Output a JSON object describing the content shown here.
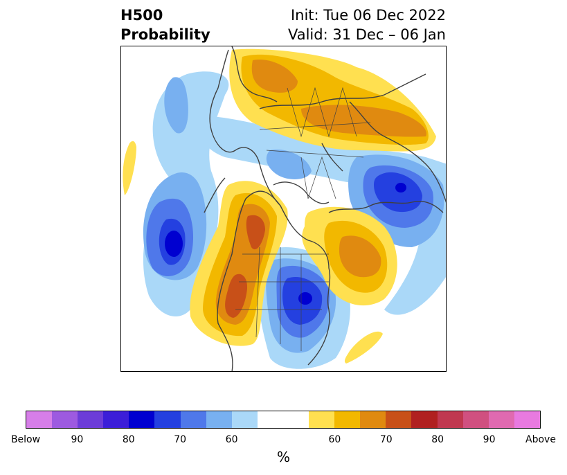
{
  "title": {
    "left_line1": "H500",
    "left_line2": "Probability",
    "right_line1": "Init: Tue 06 Dec 2022",
    "right_line2": "Valid: 31 Dec – 06 Jan"
  },
  "colorbar": {
    "label": "%",
    "colors": [
      "#d67ee8",
      "#9d5ae0",
      "#6c3cd8",
      "#3c1ed8",
      "#0000d0",
      "#2440e0",
      "#4f78ea",
      "#78b0f0",
      "#aad8f8",
      "#ffffff",
      "#ffffff",
      "#ffe050",
      "#f2b800",
      "#e08a10",
      "#c85018",
      "#b02020",
      "#c03850",
      "#d05080",
      "#e06ab0",
      "#e87ae0"
    ],
    "tick_labels": [
      "Below",
      "90",
      "80",
      "70",
      "60",
      "60",
      "70",
      "80",
      "90",
      "Above"
    ]
  },
  "map": {
    "description_colors": {
      "below_light": "#aad8f8",
      "below_mid": "#78b0f0",
      "below_strong": "#4f78ea",
      "below_deep": "#2440e0",
      "below_core": "#0000d0",
      "above_light": "#ffe050",
      "above_mid": "#f2b800",
      "above_strong": "#e08a10",
      "above_deep": "#c85018"
    }
  }
}
